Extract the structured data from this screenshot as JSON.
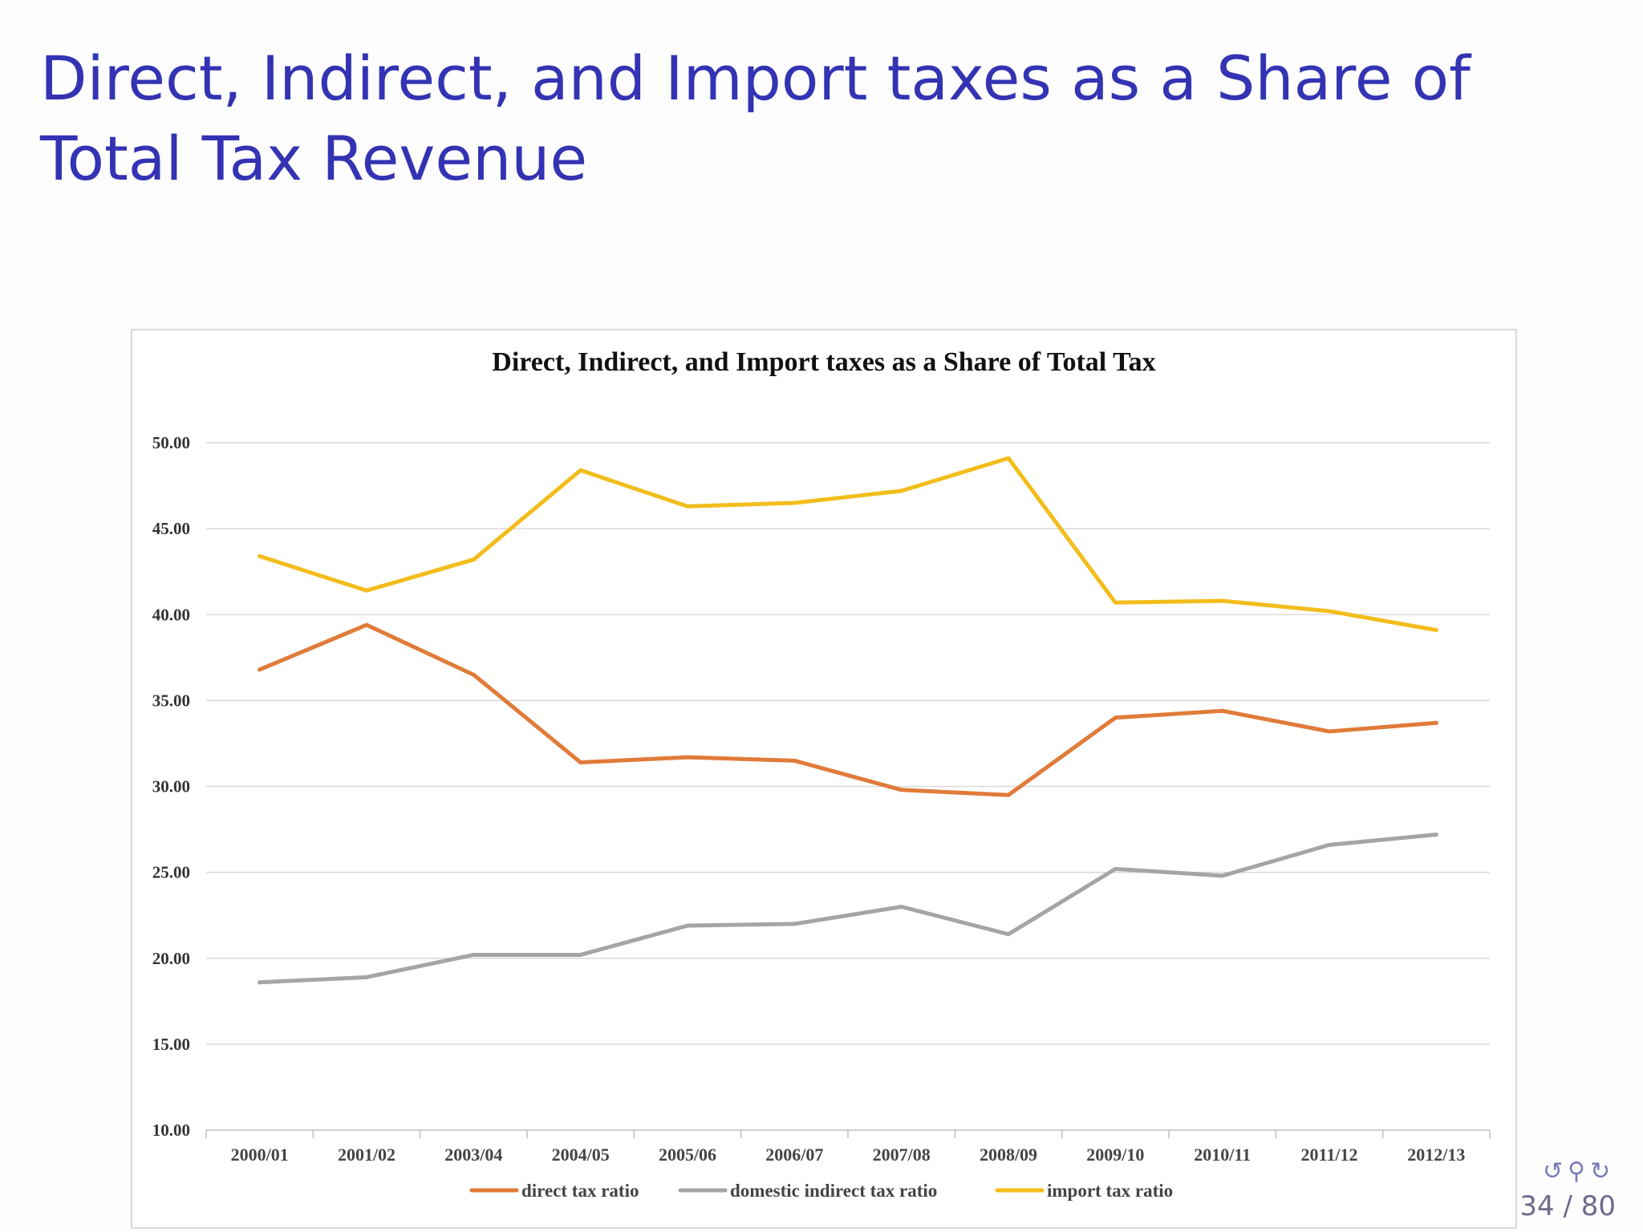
{
  "slide": {
    "title": "Direct, Indirect, and Import taxes as a Share of Total Tax Revenue",
    "page_number": "34 / 80",
    "nav_icons": [
      "loop-icon",
      "search-icon",
      "undo-icon"
    ]
  },
  "chart_data": {
    "type": "line",
    "title": "Direct, Indirect, and Import taxes as a Share of Total Tax",
    "xlabel": "",
    "ylabel": "",
    "categories": [
      "2000/01",
      "2001/02",
      "2003/04",
      "2004/05",
      "2005/06",
      "2006/07",
      "2007/08",
      "2008/09",
      "2009/10",
      "2010/11",
      "2011/12",
      "2012/13"
    ],
    "ylim": [
      10,
      50
    ],
    "yticks": [
      "10.00",
      "15.00",
      "20.00",
      "25.00",
      "30.00",
      "35.00",
      "40.00",
      "45.00",
      "50.00"
    ],
    "grid": true,
    "legend_position": "bottom",
    "series": [
      {
        "name": "direct tax ratio",
        "color": "#e07b39",
        "values": [
          36.8,
          39.4,
          36.5,
          31.4,
          31.7,
          31.5,
          29.8,
          29.5,
          34.0,
          34.4,
          33.2,
          33.7
        ]
      },
      {
        "name": "domestic indirect tax  ratio",
        "color": "#a5a5a5",
        "values": [
          18.6,
          18.9,
          20.2,
          20.2,
          21.9,
          22.0,
          23.0,
          21.4,
          25.2,
          24.8,
          26.6,
          27.2
        ]
      },
      {
        "name": "import tax ratio",
        "color": "#f2bd1b",
        "values": [
          43.4,
          41.4,
          43.2,
          48.4,
          46.3,
          46.5,
          47.2,
          49.1,
          40.7,
          40.8,
          40.2,
          39.1
        ]
      }
    ]
  }
}
